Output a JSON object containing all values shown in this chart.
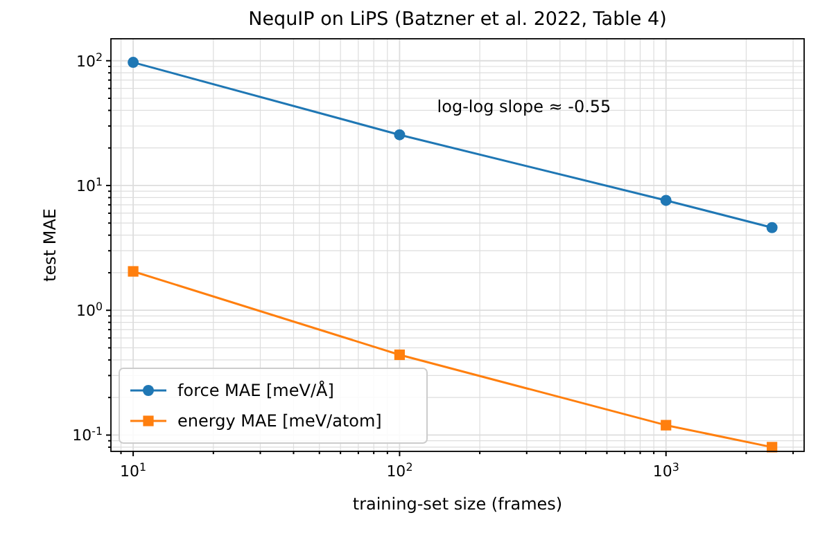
{
  "chart_data": {
    "type": "line",
    "title": "NequIP on LiPS (Batzner et al. 2022, Table 4)",
    "xlabel": "training-set size (frames)",
    "ylabel": "test MAE",
    "log": "xy",
    "grid": true,
    "legend": "bottom left",
    "x": [
      10,
      100,
      1000,
      2500
    ],
    "series": [
      {
        "name": "force MAE [meV/Å]",
        "color": "#1f77b4",
        "marker": "circle",
        "values": [
          97,
          25.5,
          7.6,
          4.6
        ]
      },
      {
        "name": "energy MAE [meV/atom]",
        "color": "#ff7f0e",
        "marker": "square",
        "values": [
          2.05,
          0.44,
          0.12,
          0.08
        ]
      }
    ],
    "xlim": [
      8.25,
      3300
    ],
    "xticks": [
      {
        "value": 10,
        "label": "10$^{1}$"
      },
      {
        "value": 100,
        "label": "10$^{2}$"
      },
      {
        "value": 1000,
        "label": "10$^{3}$"
      },
      {
        "value": 9,
        "label": null
      },
      {
        "value": 20,
        "label": null
      },
      {
        "value": 30,
        "label": null
      },
      {
        "value": 40,
        "label": null
      },
      {
        "value": 50,
        "label": null
      },
      {
        "value": 60,
        "label": null
      },
      {
        "value": 70,
        "label": null
      },
      {
        "value": 80,
        "label": null
      },
      {
        "value": 90,
        "label": null
      },
      {
        "value": 200,
        "label": null
      },
      {
        "value": 300,
        "label": null
      },
      {
        "value": 400,
        "label": null
      },
      {
        "value": 500,
        "label": null
      },
      {
        "value": 600,
        "label": null
      },
      {
        "value": 700,
        "label": null
      },
      {
        "value": 800,
        "label": null
      },
      {
        "value": 900,
        "label": null
      },
      {
        "value": 2000,
        "label": null
      },
      {
        "value": 3000,
        "label": null
      }
    ],
    "ylim": [
      0.074,
      150
    ],
    "yticks": [
      {
        "value": 0.1,
        "label": "10$^{-1}$"
      },
      {
        "value": 1,
        "label": "10$^{0}$"
      },
      {
        "value": 10,
        "label": "10$^{1}$"
      },
      {
        "value": 100,
        "label": "10$^{2}$"
      },
      {
        "value": 0.08,
        "label": null
      },
      {
        "value": 0.09,
        "label": null
      },
      {
        "value": 0.2,
        "label": null
      },
      {
        "value": 0.3,
        "label": null
      },
      {
        "value": 0.4,
        "label": null
      },
      {
        "value": 0.5,
        "label": null
      },
      {
        "value": 0.6,
        "label": null
      },
      {
        "value": 0.7,
        "label": null
      },
      {
        "value": 0.8,
        "label": null
      },
      {
        "value": 0.9,
        "label": null
      },
      {
        "value": 2,
        "label": null
      },
      {
        "value": 3,
        "label": null
      },
      {
        "value": 4,
        "label": null
      },
      {
        "value": 5,
        "label": null
      },
      {
        "value": 6,
        "label": null
      },
      {
        "value": 7,
        "label": null
      },
      {
        "value": 8,
        "label": null
      },
      {
        "value": 9,
        "label": null
      },
      {
        "value": 20,
        "label": null
      },
      {
        "value": 30,
        "label": null
      },
      {
        "value": 40,
        "label": null
      },
      {
        "value": 50,
        "label": null
      },
      {
        "value": 60,
        "label": null
      },
      {
        "value": 70,
        "label": null
      },
      {
        "value": 80,
        "label": null
      },
      {
        "value": 90,
        "label": null
      }
    ],
    "annotations": [
      "log-log slope ≈ -0.55"
    ]
  }
}
